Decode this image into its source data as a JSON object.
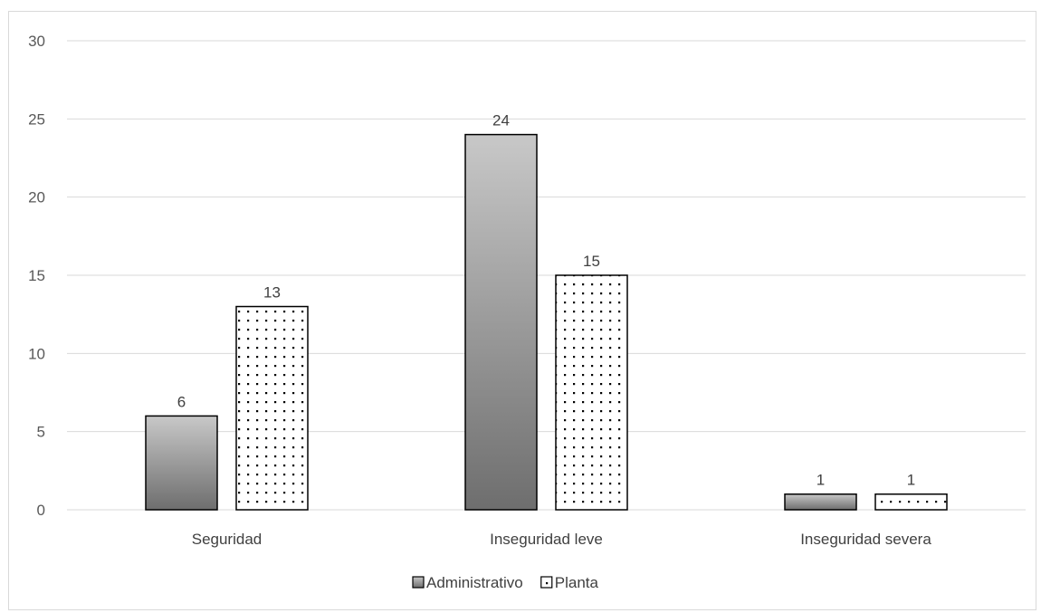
{
  "chart_data": {
    "type": "bar",
    "categories": [
      "Seguridad",
      "Inseguridad leve",
      "Inseguridad severa"
    ],
    "series": [
      {
        "name": "Administrativo",
        "values": [
          6,
          24,
          1
        ],
        "fill": "gradient-gray"
      },
      {
        "name": "Planta",
        "values": [
          13,
          15,
          1
        ],
        "fill": "dotted-white"
      }
    ],
    "ylim": [
      0,
      30
    ],
    "yticks": [
      0,
      5,
      10,
      15,
      20,
      25,
      30
    ],
    "grid": true,
    "legend": "bottom-center",
    "colors": {
      "grid": "#d9d9d9",
      "bar_outline": "#000000",
      "gradient_top": "#c8c8c8",
      "gradient_bottom": "#6e6e6e"
    }
  }
}
